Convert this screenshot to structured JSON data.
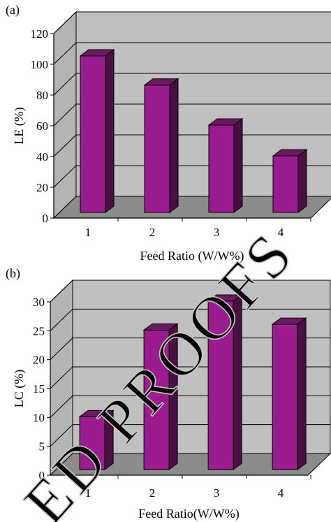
{
  "watermark": "ED PROOFS",
  "colors": {
    "bar_front": "#9b1c8e",
    "bar_side": "#4a1041",
    "bar_top": "#6b1a61",
    "wall": "#c0c0c0",
    "floor": "#8c8c8c",
    "grid": "#000000"
  },
  "chart_data": [
    {
      "panel": "(a)",
      "type": "bar",
      "style": "3d",
      "categories": [
        "1",
        "2",
        "3",
        "4"
      ],
      "values": [
        105,
        86,
        60,
        40
      ],
      "xlabel": "Feed Ratio (W/W%)",
      "ylabel": "LE (%)",
      "ylim": [
        0,
        120
      ],
      "yticks": [
        0,
        20,
        40,
        60,
        80,
        100,
        120
      ],
      "grid": true,
      "legend": "none"
    },
    {
      "panel": "(b)",
      "type": "bar",
      "style": "3d",
      "categories": [
        "1",
        "2",
        "3",
        "4"
      ],
      "values": [
        10,
        25,
        30,
        26
      ],
      "xlabel": "Feed Ratio(W/W%)",
      "ylabel": "LC (%)",
      "ylim": [
        0,
        30
      ],
      "yticks": [
        0,
        5,
        10,
        15,
        20,
        25,
        30
      ],
      "grid": true,
      "legend": "none"
    }
  ]
}
